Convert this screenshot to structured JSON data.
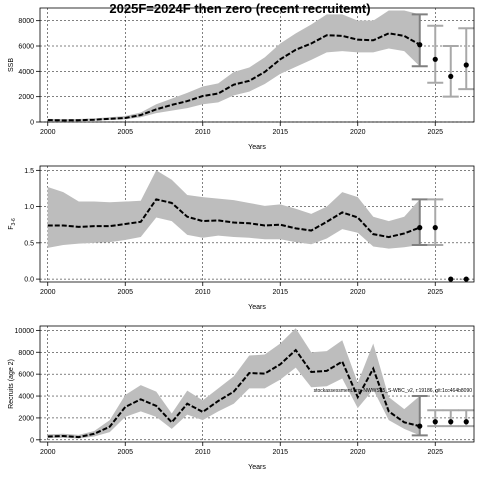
{
  "title": "2025F=2024F then zero (recent recruitemt)",
  "annotation": "stockassessment.org, NWWS25_S-WBC_v2, r:19186, git:1cc464b8090",
  "chart_data": [
    {
      "type": "line",
      "ylabel": "SSB",
      "xlabel": "Years",
      "xlim": [
        1999.5,
        2027.5
      ],
      "ylim": [
        0,
        9000
      ],
      "xticks": [
        2000,
        2005,
        2010,
        2015,
        2020,
        2025
      ],
      "yticks": [
        0,
        2000,
        4000,
        6000,
        8000
      ],
      "ytick_labels": [
        "0",
        "2000",
        "4000",
        "6000",
        "8000"
      ],
      "grid": true,
      "series": [
        {
          "x": [
            2000,
            2001,
            2002,
            2003,
            2004,
            2005,
            2006,
            2007,
            2008,
            2009,
            2010,
            2011,
            2012,
            2013,
            2014,
            2015,
            2016,
            2017,
            2018,
            2019,
            2020,
            2021,
            2022,
            2023,
            2024
          ],
          "y": [
            150,
            130,
            140,
            180,
            250,
            320,
            550,
            1000,
            1350,
            1650,
            2050,
            2250,
            2950,
            3250,
            3950,
            4950,
            5700,
            6200,
            6850,
            6800,
            6500,
            6450,
            7000,
            6800,
            6100
          ],
          "lower": [
            80,
            70,
            80,
            110,
            160,
            210,
            380,
            700,
            900,
            1100,
            1400,
            1550,
            2100,
            2400,
            3000,
            3800,
            4350,
            4900,
            5500,
            5600,
            5500,
            5500,
            5800,
            5600,
            4400
          ],
          "upper": [
            250,
            230,
            240,
            290,
            370,
            470,
            750,
            1400,
            1850,
            2300,
            2800,
            3050,
            3950,
            4300,
            5100,
            6200,
            7000,
            7700,
            8500,
            8500,
            8000,
            8000,
            8800,
            8800,
            8500
          ]
        }
      ],
      "forecast": [
        {
          "x": 2025,
          "y": 4950,
          "lower": 3100,
          "upper": 7600
        },
        {
          "x": 2026,
          "y": 3600,
          "lower": 2000,
          "upper": 6000
        },
        {
          "x": 2027,
          "y": 4500,
          "lower": 2600,
          "upper": 7400
        }
      ]
    },
    {
      "type": "line",
      "ylabel": "F",
      "ylabel_sub": "3-6",
      "xlabel": "Years",
      "xlim": [
        1999.5,
        2027.5
      ],
      "ylim": [
        -0.04,
        1.56
      ],
      "xticks": [
        2000,
        2005,
        2010,
        2015,
        2020,
        2025
      ],
      "yticks": [
        0,
        0.5,
        1,
        1.5
      ],
      "ytick_labels": [
        "0.0",
        "0.5",
        "1.0",
        "1.5"
      ],
      "grid": true,
      "series": [
        {
          "x": [
            2000,
            2001,
            2002,
            2003,
            2004,
            2005,
            2006,
            2007,
            2008,
            2009,
            2010,
            2011,
            2012,
            2013,
            2014,
            2015,
            2016,
            2017,
            2018,
            2019,
            2020,
            2021,
            2022,
            2023,
            2024
          ],
          "y": [
            0.74,
            0.74,
            0.72,
            0.73,
            0.73,
            0.76,
            0.79,
            1.1,
            1.05,
            0.86,
            0.8,
            0.81,
            0.78,
            0.77,
            0.74,
            0.75,
            0.7,
            0.67,
            0.79,
            0.92,
            0.85,
            0.62,
            0.58,
            0.63,
            0.71
          ],
          "lower": [
            0.43,
            0.47,
            0.49,
            0.5,
            0.51,
            0.54,
            0.58,
            0.85,
            0.8,
            0.61,
            0.57,
            0.6,
            0.58,
            0.57,
            0.55,
            0.55,
            0.51,
            0.48,
            0.56,
            0.69,
            0.64,
            0.45,
            0.42,
            0.44,
            0.47
          ],
          "upper": [
            1.27,
            1.2,
            1.07,
            1.07,
            1.06,
            1.07,
            1.08,
            1.5,
            1.37,
            1.16,
            1.13,
            1.11,
            1.09,
            1.05,
            1.01,
            1.03,
            0.97,
            0.9,
            1.0,
            1.2,
            1.13,
            0.86,
            0.8,
            0.86,
            1.1
          ]
        }
      ],
      "forecast": [
        {
          "x": 2025,
          "y": 0.71,
          "lower": 0.47,
          "upper": 1.1
        },
        {
          "x": 2026,
          "y": 0.0,
          "lower": 0.0,
          "upper": 0.0
        },
        {
          "x": 2027,
          "y": 0.0,
          "lower": 0.0,
          "upper": 0.0
        }
      ]
    },
    {
      "type": "line",
      "ylabel": "Recruits (age 2)",
      "xlabel": "Years",
      "xlim": [
        1999.5,
        2027.5
      ],
      "ylim": [
        -200,
        10400
      ],
      "xticks": [
        2000,
        2005,
        2010,
        2015,
        2020,
        2025
      ],
      "yticks": [
        0,
        2000,
        4000,
        6000,
        8000,
        10000
      ],
      "ytick_labels": [
        "0",
        "2000",
        "4000",
        "6000",
        "8000",
        "10000"
      ],
      "grid": true,
      "series": [
        {
          "x": [
            2000,
            2001,
            2002,
            2003,
            2004,
            2005,
            2006,
            2007,
            2008,
            2009,
            2010,
            2011,
            2012,
            2013,
            2014,
            2015,
            2016,
            2017,
            2018,
            2019,
            2020,
            2021,
            2022,
            2023,
            2024
          ],
          "y": [
            300,
            350,
            250,
            550,
            1200,
            3000,
            3700,
            3100,
            1600,
            3300,
            2550,
            3550,
            4400,
            6100,
            6050,
            6900,
            8200,
            6200,
            6300,
            7150,
            3900,
            6500,
            2600,
            1600,
            1250
          ],
          "lower": [
            150,
            180,
            120,
            300,
            700,
            2100,
            2600,
            2100,
            1000,
            2300,
            1800,
            2600,
            3300,
            4700,
            4700,
            5500,
            6600,
            4800,
            4900,
            5600,
            2900,
            4600,
            1800,
            1000,
            400
          ],
          "upper": [
            500,
            550,
            450,
            800,
            1800,
            4100,
            5000,
            4400,
            2400,
            4500,
            3600,
            4700,
            5800,
            7700,
            7800,
            8800,
            10200,
            8000,
            8100,
            9100,
            5200,
            8800,
            3900,
            2800,
            4000
          ]
        }
      ],
      "forecast": [
        {
          "x": 2025,
          "y": 1650,
          "lower": 1250,
          "upper": 2700
        },
        {
          "x": 2026,
          "y": 1650,
          "lower": 1250,
          "upper": 2700
        },
        {
          "x": 2027,
          "y": 1650,
          "lower": 1250,
          "upper": 2700
        }
      ]
    }
  ]
}
